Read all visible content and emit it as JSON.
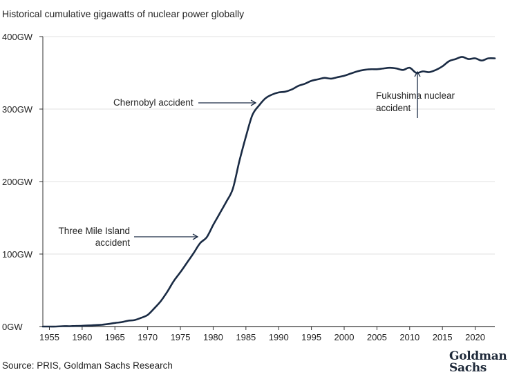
{
  "title": "Historical cumulative gigawatts of nuclear power globally",
  "source": "Source: PRIS, Goldman Sachs Research",
  "logo": {
    "line1": "Goldman",
    "line2": "Sachs"
  },
  "colors": {
    "line": "#1a2b44",
    "grid": "#e2e2e2",
    "axis": "#333333",
    "text": "#222222"
  },
  "chart_data": {
    "type": "line",
    "title": "Historical cumulative gigawatts of nuclear power globally",
    "xlabel": "",
    "ylabel": "",
    "xlim": [
      1954,
      2023
    ],
    "ylim": [
      0,
      400
    ],
    "x_ticks": [
      1955,
      1960,
      1965,
      1970,
      1975,
      1980,
      1985,
      1990,
      1995,
      2000,
      2005,
      2010,
      2015,
      2020
    ],
    "y_ticks": [
      {
        "value": 0,
        "label": "0GW"
      },
      {
        "value": 100,
        "label": "100GW"
      },
      {
        "value": 200,
        "label": "200GW"
      },
      {
        "value": 300,
        "label": "300GW"
      },
      {
        "value": 400,
        "label": "400GW"
      }
    ],
    "grid": "horizontal",
    "series": [
      {
        "x": [
          1954,
          1955,
          1956,
          1957,
          1958,
          1959,
          1960,
          1961,
          1962,
          1963,
          1964,
          1965,
          1966,
          1967,
          1968,
          1969,
          1970,
          1971,
          1972,
          1973,
          1974,
          1975,
          1976,
          1977,
          1978,
          1979,
          1980,
          1981,
          1982,
          1983,
          1984,
          1985,
          1986,
          1987,
          1988,
          1989,
          1990,
          1991,
          1992,
          1993,
          1994,
          1995,
          1996,
          1997,
          1998,
          1999,
          2000,
          2001,
          2002,
          2003,
          2004,
          2005,
          2006,
          2007,
          2008,
          2009,
          2010,
          2011,
          2012,
          2013,
          2014,
          2015,
          2016,
          2017,
          2018,
          2019,
          2020,
          2021,
          2022,
          2023
        ],
        "y": [
          0,
          0,
          0,
          0.5,
          0.5,
          0.8,
          1,
          1.5,
          2,
          2.5,
          3.5,
          5,
          6,
          8,
          9,
          12,
          16,
          25,
          35,
          48,
          63,
          75,
          88,
          101,
          115,
          123,
          140,
          156,
          172,
          190,
          228,
          262,
          292,
          305,
          315,
          320,
          323,
          324,
          327,
          332,
          335,
          339,
          341,
          343,
          342,
          344,
          346,
          349,
          352,
          354,
          355,
          355,
          356,
          357,
          356,
          354,
          357,
          350,
          352,
          351,
          354,
          359,
          366,
          369,
          372,
          369,
          370,
          367,
          370,
          370
        ]
      }
    ],
    "annotations": [
      {
        "text": "Chernobyl accident",
        "year": 1986
      },
      {
        "text": "Three Mile Island accident",
        "lines": [
          "Three Mile Island",
          "accident"
        ],
        "year": 1979
      },
      {
        "text": "Fukushima nuclear accident",
        "lines": [
          "Fukushima nuclear",
          "accident"
        ],
        "year": 2011
      }
    ]
  }
}
